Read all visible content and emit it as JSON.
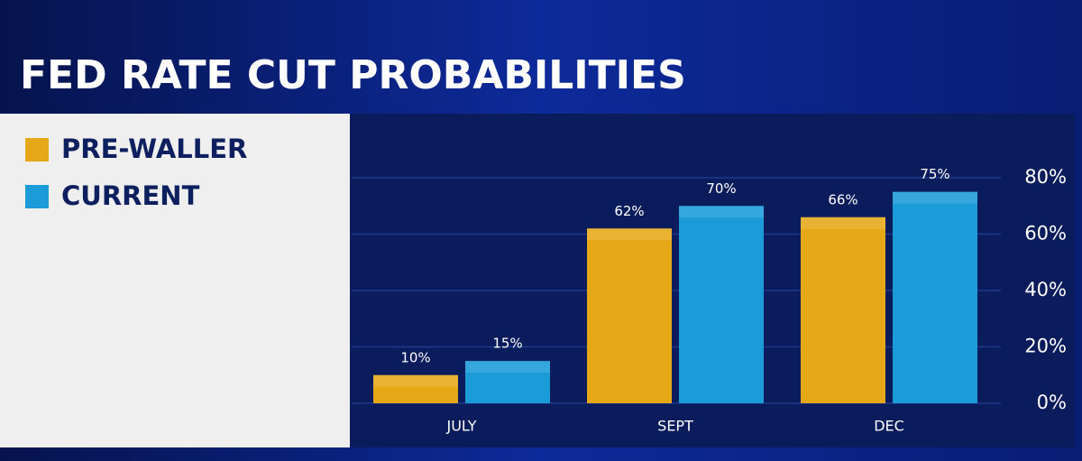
{
  "chart_data": {
    "type": "bar",
    "title": "FED RATE CUT PROBABILITIES",
    "categories": [
      "JULY",
      "SEPT",
      "DEC"
    ],
    "series": [
      {
        "name": "PRE-WALLER",
        "color": "#e6a817",
        "values": [
          10,
          62,
          66
        ],
        "value_labels": [
          "10%",
          "62%",
          "66%"
        ]
      },
      {
        "name": "CURRENT",
        "color": "#1b9bd8",
        "values": [
          15,
          70,
          75
        ],
        "value_labels": [
          "15%",
          "70%",
          "75%"
        ]
      }
    ],
    "ylim": [
      0,
      80
    ],
    "yticks": [
      {
        "value": 0,
        "label": "0%"
      },
      {
        "value": 20,
        "label": "20%"
      },
      {
        "value": 40,
        "label": "40%"
      },
      {
        "value": 60,
        "label": "60%"
      },
      {
        "value": 80,
        "label": "80%"
      }
    ],
    "grid": true
  }
}
